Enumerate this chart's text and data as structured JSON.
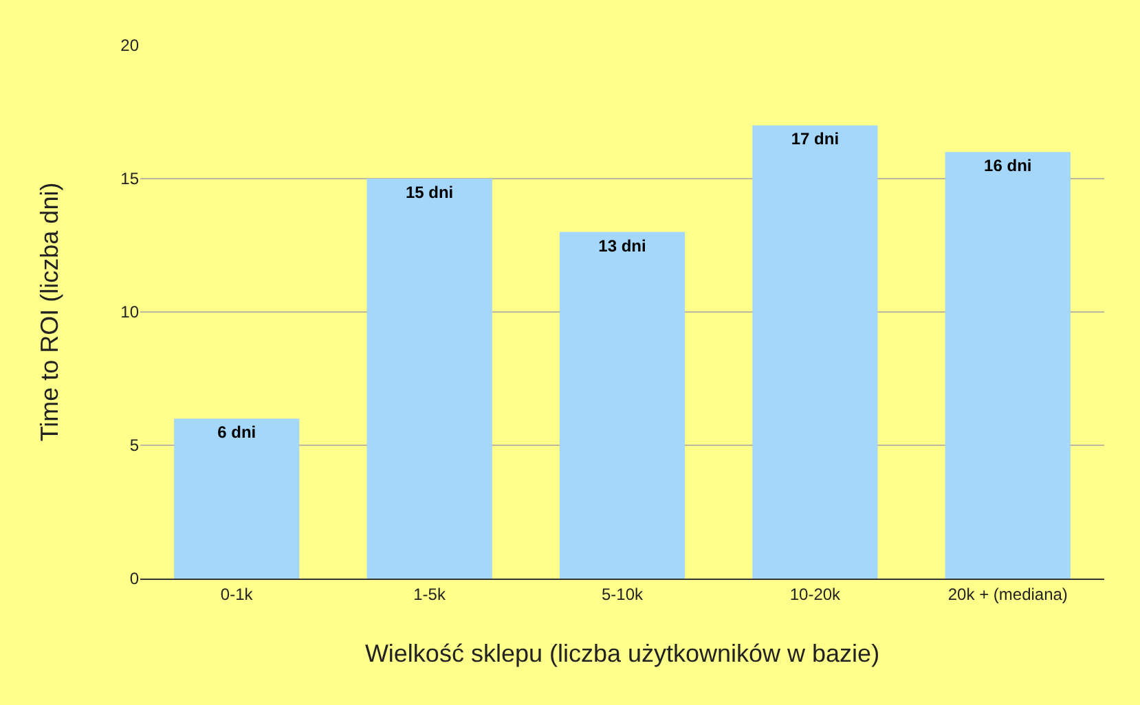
{
  "chart_data": {
    "type": "bar",
    "xlabel": "Wielkość sklepu (liczba użytkowników w bazie)",
    "ylabel": "Time to ROI (liczba dni)",
    "categories": [
      "0-1k",
      "1-5k",
      "5-10k",
      "10-20k",
      "20k + (mediana)"
    ],
    "values": [
      6,
      15,
      13,
      17,
      16
    ],
    "value_labels": [
      "6 dni",
      "15 dni",
      "13 dni",
      "17 dni",
      "16 dni"
    ],
    "color": "#a4d7fa",
    "ylim": [
      0,
      20
    ],
    "yticks": [
      0,
      5,
      10,
      15,
      20
    ],
    "grid": "y",
    "legend": false
  }
}
